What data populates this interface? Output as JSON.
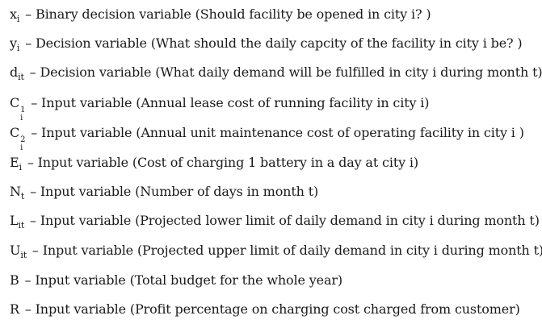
{
  "definitions": [
    {
      "base": "x",
      "sub": "i",
      "sup": "",
      "desc": " – Binary decision variable (Should facility be opened in city i? )"
    },
    {
      "base": "y",
      "sub": "i",
      "sup": "",
      "desc": " – Decision variable (What should the daily capcity of the facility in city i be? )"
    },
    {
      "base": "d",
      "sub": "it",
      "sup": "",
      "desc": " – Decision variable (What daily demand will be fulfilled in city i during month t)"
    },
    {
      "base": "C",
      "sub": "i",
      "sup": "1",
      "desc": " – Input variable (Annual lease cost of running facility in city i)"
    },
    {
      "base": "C",
      "sub": "i",
      "sup": "2",
      "desc": " – Input variable (Annual unit maintenance cost of operating facility in city i )"
    },
    {
      "base": "E",
      "sub": "i",
      "sup": "",
      "desc": " – Input variable (Cost of charging 1 battery in a day at city i)"
    },
    {
      "base": "N",
      "sub": "t",
      "sup": "",
      "desc": " – Input variable (Number of days in month t)"
    },
    {
      "base": "L",
      "sub": "it",
      "sup": "",
      "desc": " – Input variable (Projected lower limit of daily demand in city i during month t)"
    },
    {
      "base": "U",
      "sub": "it",
      "sup": "",
      "desc": " – Input variable (Projected upper limit of daily demand in city i during month t)"
    },
    {
      "base": "B",
      "sub": "",
      "sup": "",
      "desc": " – Input variable (Total budget for the whole year)"
    },
    {
      "base": "R",
      "sub": "",
      "sup": "",
      "desc": " – Input variable (Profit percentage on charging cost charged from customer)"
    }
  ]
}
